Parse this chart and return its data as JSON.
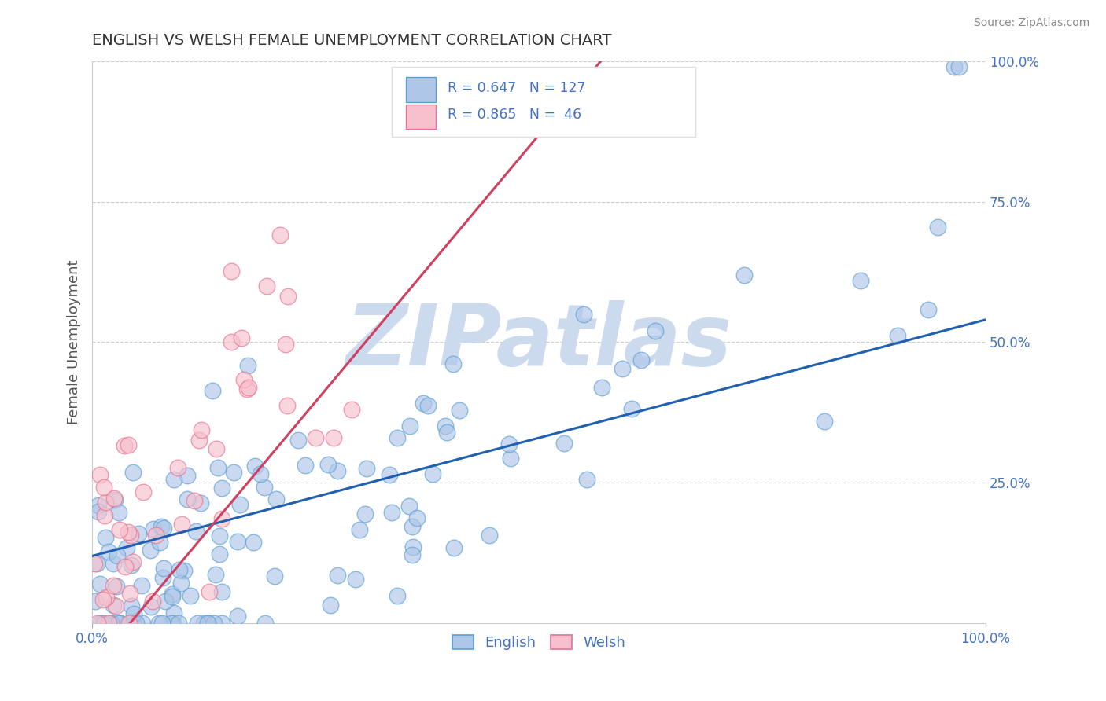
{
  "title": "ENGLISH VS WELSH FEMALE UNEMPLOYMENT CORRELATION CHART",
  "source": "Source: ZipAtlas.com",
  "ylabel": "Female Unemployment",
  "xlim": [
    0,
    1
  ],
  "ylim": [
    0,
    1
  ],
  "english_color": "#aec6e8",
  "english_edge_color": "#5a9fd4",
  "welsh_color": "#f7c0cc",
  "welsh_edge_color": "#e87090",
  "english_line_color": "#2060b0",
  "welsh_line_color": "#d04060",
  "R_english": 0.647,
  "N_english": 127,
  "R_welsh": 0.865,
  "N_welsh": 46,
  "watermark": "ZIPatlas",
  "watermark_color": "#ccdaee",
  "background_color": "#ffffff",
  "grid_color": "#cccccc",
  "title_color": "#333333",
  "axis_label_color": "#555555",
  "tick_label_color": "#4472c4",
  "legend_text_color": "#4472c4"
}
